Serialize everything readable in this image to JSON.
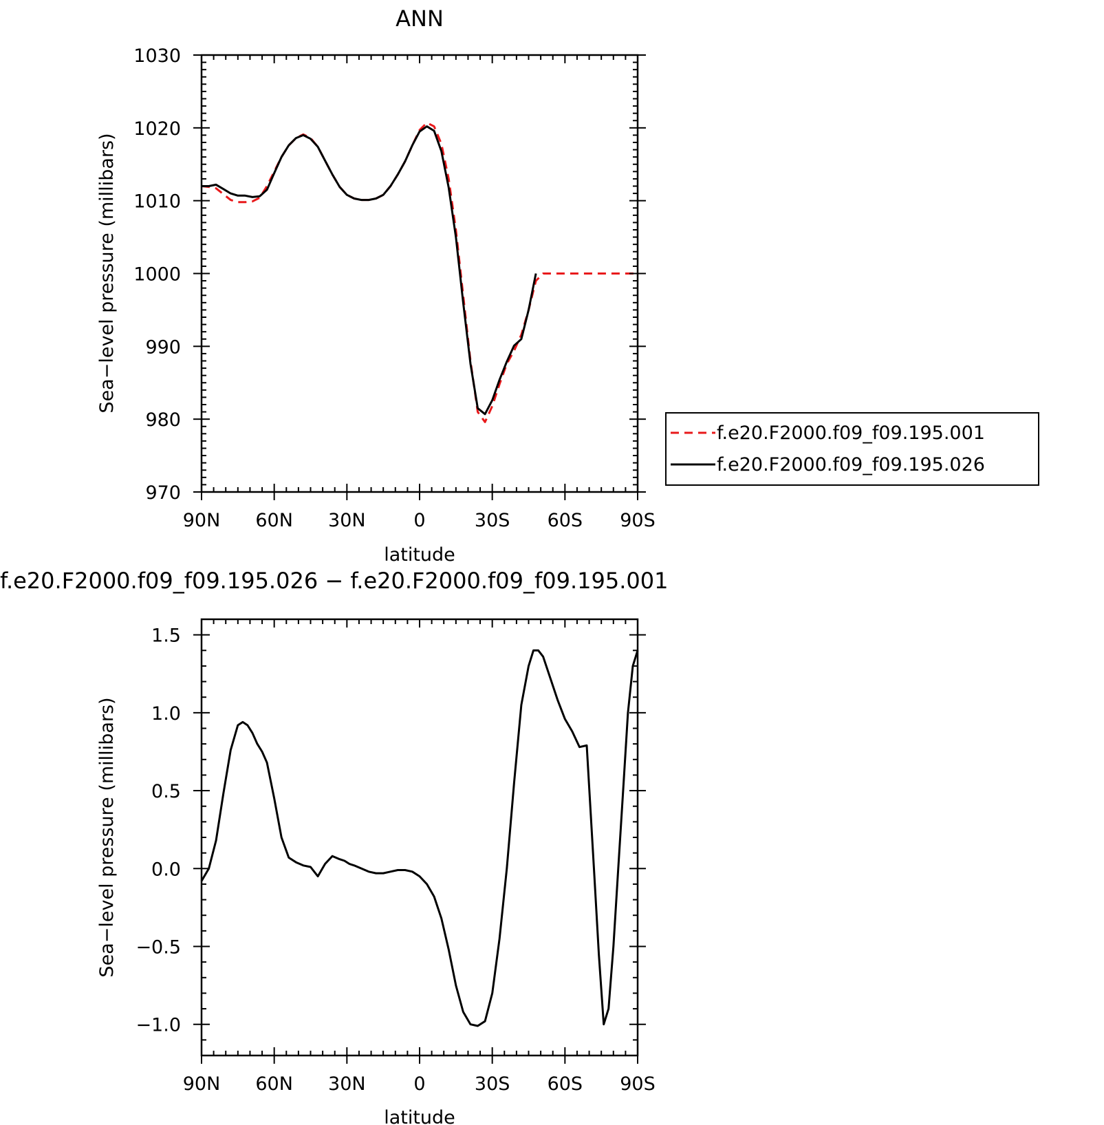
{
  "chart_data": [
    {
      "type": "line",
      "title": "ANN",
      "xlabel": "latitude",
      "ylabel": "Sea−level pressure (millibars)",
      "xlim": [
        90,
        -90
      ],
      "ylim": [
        970,
        1030
      ],
      "x_ticks": [
        {
          "value": 90,
          "label": "90N"
        },
        {
          "value": 60,
          "label": "60N"
        },
        {
          "value": 30,
          "label": "30N"
        },
        {
          "value": 0,
          "label": "0"
        },
        {
          "value": -30,
          "label": "30S"
        },
        {
          "value": -60,
          "label": "60S"
        },
        {
          "value": -90,
          "label": "90S"
        }
      ],
      "y_ticks": [
        {
          "value": 1030,
          "label": "1030"
        },
        {
          "value": 1020,
          "label": "1020"
        },
        {
          "value": 1010,
          "label": "1010"
        },
        {
          "value": 1000,
          "label": "1000"
        },
        {
          "value": 990,
          "label": "990"
        },
        {
          "value": 980,
          "label": "980"
        },
        {
          "value": 970,
          "label": "970"
        }
      ],
      "legend_position": "right",
      "series": [
        {
          "name": "f.e20.F2000.f09_f09.195.001",
          "color": "#e8191b",
          "dash": true,
          "x": [
            90,
            87,
            84,
            81,
            78,
            75,
            72,
            69,
            66,
            63,
            60,
            57,
            54,
            51,
            48,
            45,
            42,
            39,
            36,
            33,
            30,
            27,
            24,
            21,
            18,
            15,
            12,
            9,
            6,
            3,
            0,
            -3,
            -6,
            -9,
            -12,
            -15,
            -18,
            -21,
            -24,
            -27,
            -30,
            -33,
            -36,
            -39,
            -42,
            -45,
            -48,
            -51,
            -54,
            -57,
            -60,
            -63,
            -66,
            -69,
            -72,
            -75,
            -78,
            -81,
            -84,
            -87,
            -90
          ],
          "y": [
            1012.0,
            1011.9,
            1011.7,
            1010.9,
            1010.1,
            1009.8,
            1009.8,
            1009.9,
            1010.4,
            1012.0,
            1014.0,
            1016.0,
            1017.6,
            1018.6,
            1019.1,
            1018.6,
            1017.4,
            1015.5,
            1013.6,
            1011.9,
            1010.8,
            1010.3,
            1010.1,
            1010.1,
            1010.3,
            1010.8,
            1012.0,
            1013.6,
            1015.4,
            1017.6,
            1019.7,
            1020.7,
            1020.2,
            1017.8,
            1013.0,
            1006.0,
            997.0,
            988.0,
            981.0,
            979.6,
            981.8,
            984.8,
            987.6,
            989.4,
            991.6,
            995.0,
            999.0,
            1000.0,
            1000.0,
            1000.0,
            1000.0,
            1000.0,
            1000.0,
            1000.0,
            1000.0,
            1000.0,
            1000.0,
            1000.0,
            1000.0,
            1000.0,
            1000.0
          ]
        },
        {
          "name": "f.e20.F2000.f09_f09.195.026",
          "color": "#000000",
          "dash": false,
          "x": [
            90,
            87,
            84,
            81,
            78,
            75,
            72,
            69,
            66,
            63,
            60,
            57,
            54,
            51,
            48,
            45,
            42,
            39,
            36,
            33,
            30,
            27,
            24,
            21,
            18,
            15,
            12,
            9,
            6,
            3,
            0,
            -3,
            -6,
            -9,
            -12,
            -15,
            -18,
            -21,
            -24,
            -27,
            -30,
            -33,
            -36,
            -39,
            -42,
            -45,
            -48
          ],
          "y": [
            1012.0,
            1012.0,
            1012.2,
            1011.6,
            1011.0,
            1010.7,
            1010.7,
            1010.5,
            1010.6,
            1011.5,
            1013.8,
            1016.0,
            1017.6,
            1018.6,
            1019.0,
            1018.5,
            1017.4,
            1015.5,
            1013.6,
            1011.9,
            1010.8,
            1010.3,
            1010.1,
            1010.1,
            1010.3,
            1010.8,
            1012.0,
            1013.6,
            1015.4,
            1017.6,
            1019.5,
            1020.2,
            1019.6,
            1016.8,
            1011.8,
            1005.0,
            996.0,
            987.6,
            981.5,
            980.7,
            982.6,
            985.4,
            987.9,
            990.1,
            991.0,
            995.0,
            1000.0
          ]
        }
      ]
    },
    {
      "type": "line",
      "title": "f.e20.F2000.f09_f09.195.026 − f.e20.F2000.f09_f09.195.001",
      "xlabel": "latitude",
      "ylabel": "Sea−level pressure (millibars)",
      "xlim": [
        90,
        -90
      ],
      "ylim": [
        -1.2,
        1.6
      ],
      "x_ticks": [
        {
          "value": 90,
          "label": "90N"
        },
        {
          "value": 60,
          "label": "60N"
        },
        {
          "value": 30,
          "label": "30N"
        },
        {
          "value": 0,
          "label": "0"
        },
        {
          "value": -30,
          "label": "30S"
        },
        {
          "value": -60,
          "label": "60S"
        },
        {
          "value": -90,
          "label": "90S"
        }
      ],
      "y_ticks": [
        {
          "value": 1.5,
          "label": "1.5"
        },
        {
          "value": 1.0,
          "label": "1.0"
        },
        {
          "value": 0.5,
          "label": "0.5"
        },
        {
          "value": 0.0,
          "label": "0.0"
        },
        {
          "value": -0.5,
          "label": "−0.5"
        },
        {
          "value": -1.0,
          "label": "−1.0"
        }
      ],
      "series": [
        {
          "color": "#000000",
          "dash": false,
          "x": [
            90,
            87,
            84,
            81,
            78,
            75,
            73,
            71,
            69,
            67,
            65,
            63,
            60,
            57,
            54,
            51,
            48,
            45,
            42,
            39,
            36,
            33,
            31,
            29,
            27,
            24,
            21,
            18,
            15,
            12,
            9,
            6,
            3,
            0,
            -3,
            -6,
            -9,
            -12,
            -15,
            -18,
            -21,
            -24,
            -27,
            -30,
            -33,
            -36,
            -39,
            -42,
            -45,
            -47,
            -49,
            -51,
            -54,
            -57,
            -60,
            -63,
            -66,
            -69,
            -72,
            -74,
            -76,
            -78,
            -80,
            -82,
            -84,
            -86,
            -88,
            -90
          ],
          "y": [
            -0.08,
            0.0,
            0.18,
            0.48,
            0.76,
            0.92,
            0.94,
            0.92,
            0.87,
            0.8,
            0.75,
            0.68,
            0.45,
            0.2,
            0.07,
            0.04,
            0.02,
            0.01,
            -0.05,
            0.03,
            0.08,
            0.06,
            0.05,
            0.03,
            0.02,
            0.0,
            -0.02,
            -0.03,
            -0.03,
            -0.02,
            -0.01,
            -0.01,
            -0.02,
            -0.05,
            -0.1,
            -0.18,
            -0.32,
            -0.52,
            -0.75,
            -0.92,
            -1.0,
            -1.01,
            -0.98,
            -0.8,
            -0.45,
            0.0,
            0.55,
            1.05,
            1.3,
            1.4,
            1.4,
            1.36,
            1.22,
            1.08,
            0.96,
            0.88,
            0.78,
            0.79,
            -0.01,
            -0.55,
            -1.0,
            -0.9,
            -0.5,
            0.0,
            0.5,
            1.0,
            1.3,
            1.4
          ]
        }
      ]
    }
  ]
}
